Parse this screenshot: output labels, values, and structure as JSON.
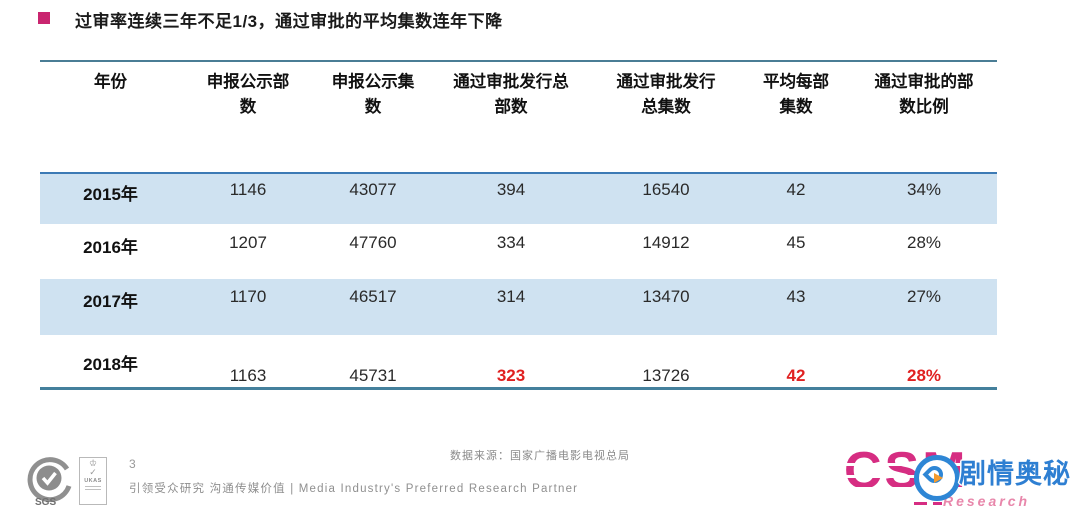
{
  "slide": {
    "title": "过审率连续三年不足1/3，通过审批的平均集数连年下降",
    "page_number": "3",
    "source_note": "数据来源：国家广播电影电视总局",
    "slogan": "引领受众研究 沟通传媒价值 | Media Industry's Preferred Research Partner"
  },
  "colors": {
    "accent_magenta": "#c9256f",
    "row_band_blue": "#cfe2f1",
    "table_rule_teal": "#4a7d95",
    "first_row_rule_blue": "#3c7ab5",
    "highlight_red": "#e02121",
    "csm_pink": "#d62d82",
    "watermark_blue": "#2e7fd2",
    "play_orange": "#f59b2d"
  },
  "table": {
    "columns": [
      {
        "lines": [
          "年份"
        ]
      },
      {
        "lines": [
          "申报公示部",
          "数"
        ]
      },
      {
        "lines": [
          "申报公示集",
          "数"
        ]
      },
      {
        "lines": [
          "通过审批发行总",
          "部数"
        ]
      },
      {
        "lines": [
          "通过审批发行",
          "总集数"
        ]
      },
      {
        "lines": [
          "平均每部",
          "集数"
        ]
      },
      {
        "lines": [
          "通过审批的部",
          "数比例"
        ]
      }
    ],
    "rows": [
      {
        "year": "2015年",
        "values": [
          "1146",
          "43077",
          "394",
          "16540",
          "42",
          "34%"
        ],
        "shaded": true,
        "red": []
      },
      {
        "year": "2016年",
        "values": [
          "1207",
          "47760",
          "334",
          "14912",
          "45",
          "28%"
        ],
        "shaded": false,
        "red": []
      },
      {
        "year": "2017年",
        "values": [
          "1170",
          "46517",
          "314",
          "13470",
          "43",
          "27%"
        ],
        "shaded": true,
        "red": []
      },
      {
        "year": "2018年",
        "values": [
          "1163",
          "45731",
          "323",
          "13726",
          "42",
          "28%"
        ],
        "shaded": false,
        "red": [
          2,
          4,
          5
        ]
      }
    ]
  },
  "chart_data": {
    "type": "table",
    "title": "过审率连续三年不足1/3，通过审批的平均集数连年下降",
    "columns": [
      "年份",
      "申报公示部数",
      "申报公示集数",
      "通过审批发行总部数",
      "通过审批发行总集数",
      "平均每部集数",
      "通过审批的部数比例"
    ],
    "rows": [
      [
        "2015年",
        1146,
        43077,
        394,
        16540,
        42,
        "34%"
      ],
      [
        "2016年",
        1207,
        47760,
        334,
        14912,
        45,
        "28%"
      ],
      [
        "2017年",
        1170,
        46517,
        314,
        13470,
        43,
        "27%"
      ],
      [
        "2018年",
        1163,
        45731,
        323,
        13726,
        42,
        "28%"
      ]
    ],
    "highlighted_cells": [
      [
        "2018年",
        "通过审批发行总部数",
        323
      ],
      [
        "2018年",
        "平均每部集数",
        42
      ],
      [
        "2018年",
        "通过审批的部数比例",
        "28%"
      ]
    ],
    "source": "数据来源：国家广播电影电视总局"
  },
  "logos": {
    "sgs": "SGS",
    "ukas": "UKAS",
    "csm": "CSM",
    "research": "Research",
    "watermark": "剧情奥秘"
  }
}
